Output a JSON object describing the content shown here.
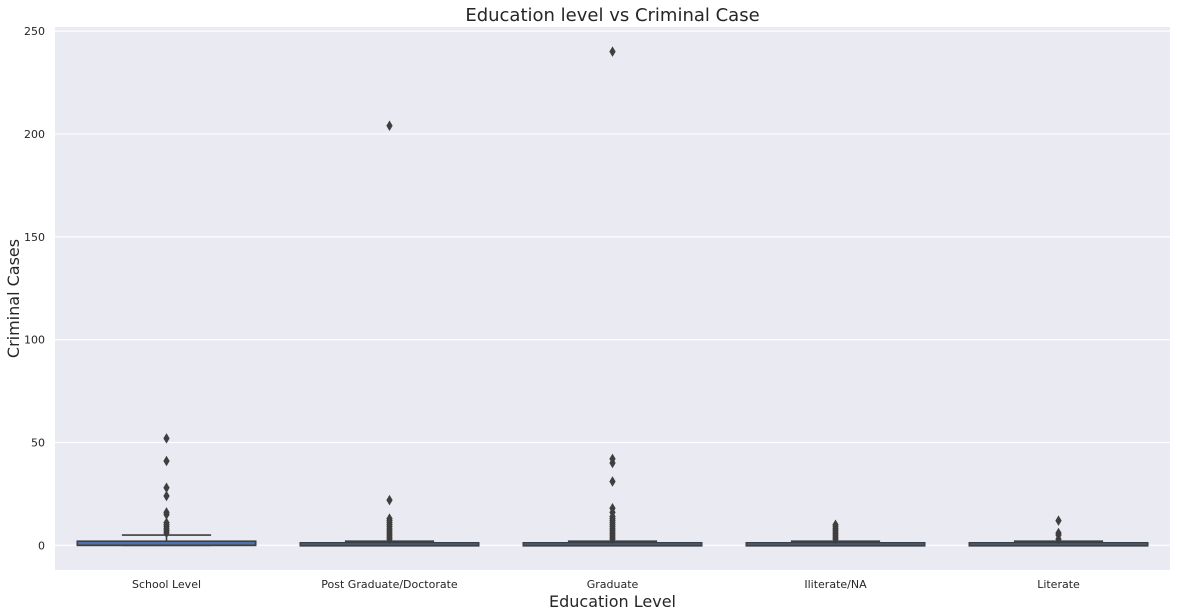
{
  "chart_data": {
    "type": "box",
    "title": "Education level vs Criminal Case",
    "xlabel": "Education Level",
    "ylabel": "Criminal Cases",
    "ylim": [
      -12,
      252
    ],
    "yticks": [
      0,
      50,
      100,
      150,
      200,
      250
    ],
    "grid": true,
    "colors": {
      "background": "#eaeaf2",
      "grid": "#ffffff",
      "box_fill": "#4c72b0",
      "line": "#3f3f3f"
    },
    "categories": [
      "School Level",
      "Post Graduate/Doctorate",
      "Graduate",
      "Iliterate/NA",
      "Literate"
    ],
    "boxes": [
      {
        "label": "School Level",
        "q1": 0,
        "median": 0,
        "q3": 2,
        "whisker_low": 0,
        "whisker_high": 5,
        "outliers": [
          6,
          7,
          8,
          9,
          10,
          11,
          15,
          16,
          24,
          28,
          41,
          52
        ]
      },
      {
        "label": "Post Graduate/Doctorate",
        "q1": 0,
        "median": 0,
        "q3": 1,
        "whisker_low": 0,
        "whisker_high": 2,
        "outliers": [
          3,
          4,
          5,
          6,
          7,
          8,
          9,
          10,
          11,
          12,
          13,
          22,
          204
        ]
      },
      {
        "label": "Graduate",
        "q1": 0,
        "median": 0,
        "q3": 1,
        "whisker_low": 0,
        "whisker_high": 2,
        "outliers": [
          3,
          4,
          5,
          6,
          7,
          8,
          9,
          10,
          11,
          12,
          13,
          14,
          16,
          18,
          31,
          40,
          42,
          240
        ]
      },
      {
        "label": "Iliterate/NA",
        "q1": 0,
        "median": 0,
        "q3": 1,
        "whisker_low": 0,
        "whisker_high": 2,
        "outliers": [
          3,
          4,
          5,
          6,
          7,
          8,
          9,
          10
        ]
      },
      {
        "label": "Literate",
        "q1": 0,
        "median": 0,
        "q3": 1,
        "whisker_low": 0,
        "whisker_high": 2,
        "outliers": [
          3,
          5,
          6,
          12
        ]
      }
    ]
  }
}
